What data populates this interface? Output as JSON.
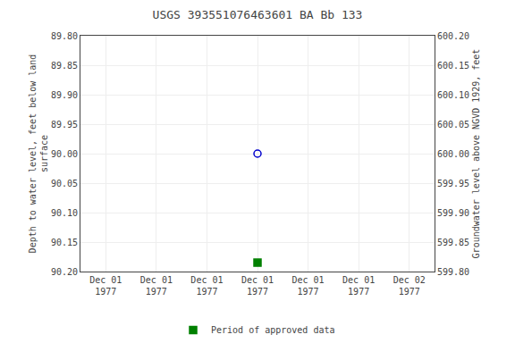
{
  "chart_data": {
    "type": "scatter",
    "title": "USGS 393551076463601 BA Bb 133",
    "y_label": "Depth to water level, feet below land\nsurface",
    "y2_label": "Groundwater level above NGVD 1929, feet",
    "categories": [
      "Dec 01\n1977",
      "Dec 01\n1977",
      "Dec 01\n1977",
      "Dec 01\n1977",
      "Dec 01\n1977",
      "Dec 01\n1977",
      "Dec 02\n1977"
    ],
    "series": [
      {
        "color": "#0000cc",
        "marker": "open_circle",
        "values": [
          null,
          null,
          null,
          90.0,
          null,
          null,
          null
        ]
      },
      {
        "name": "Period of approved data",
        "color": "#008000",
        "marker": "square",
        "values": [
          null,
          null,
          null,
          90.185,
          null,
          null,
          null
        ]
      }
    ],
    "ylim": [
      90.2,
      89.8
    ],
    "yticks": [
      {
        "value": 89.8,
        "label": "89.80"
      },
      {
        "value": 89.85,
        "label": "89.85"
      },
      {
        "value": 89.9,
        "label": "89.90"
      },
      {
        "value": 89.95,
        "label": "89.95"
      },
      {
        "value": 90.0,
        "label": "90.00"
      },
      {
        "value": 90.05,
        "label": "90.05"
      },
      {
        "value": 90.1,
        "label": "90.10"
      },
      {
        "value": 90.15,
        "label": "90.15"
      },
      {
        "value": 90.2,
        "label": "90.20"
      }
    ],
    "y2lim": [
      599.8,
      600.2
    ],
    "y2ticks": [
      {
        "value": 600.2,
        "label": "600.20"
      },
      {
        "value": 600.15,
        "label": "600.15"
      },
      {
        "value": 600.1,
        "label": "600.10"
      },
      {
        "value": 600.05,
        "label": "600.05"
      },
      {
        "value": 600.0,
        "label": "600.00"
      },
      {
        "value": 599.95,
        "label": "599.95"
      },
      {
        "value": 599.9,
        "label": "599.90"
      },
      {
        "value": 599.85,
        "label": "599.85"
      },
      {
        "value": 599.8,
        "label": "599.80"
      }
    ],
    "grid": true,
    "legend": "bottom"
  }
}
